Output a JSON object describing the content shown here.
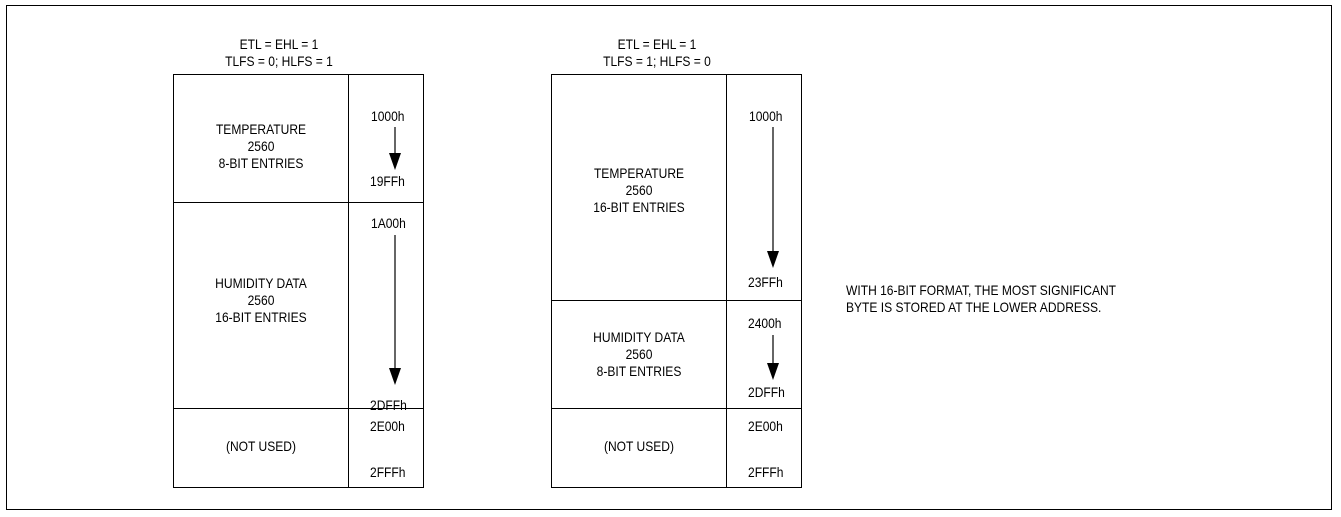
{
  "layouts": [
    {
      "header": {
        "line1": "ETL = EHL = 1",
        "line2": "TLFS = 0; HLFS = 1"
      },
      "regions": [
        {
          "label": [
            "TEMPERATURE",
            "2560",
            "8-BIT ENTRIES"
          ],
          "start": "1000h",
          "end": "19FFh"
        },
        {
          "label": [
            "HUMIDITY DATA",
            "2560",
            "16-BIT ENTRIES"
          ],
          "start": "1A00h",
          "end": "2DFFh"
        },
        {
          "label": [
            "(NOT USED)"
          ],
          "start": "2E00h",
          "end": "2FFFh"
        }
      ]
    },
    {
      "header": {
        "line1": "ETL = EHL = 1",
        "line2": "TLFS = 1; HLFS = 0"
      },
      "regions": [
        {
          "label": [
            "TEMPERATURE",
            "2560",
            "16-BIT ENTRIES"
          ],
          "start": "1000h",
          "end": "23FFh"
        },
        {
          "label": [
            "HUMIDITY DATA",
            "2560",
            "8-BIT ENTRIES"
          ],
          "start": "2400h",
          "end": "2DFFh"
        },
        {
          "label": [
            "(NOT USED)"
          ],
          "start": "2E00h",
          "end": "2FFFh"
        }
      ]
    }
  ],
  "note": {
    "line1": "WITH 16-BIT FORMAT, THE MOST SIGNIFICANT",
    "line2": "BYTE IS STORED AT THE LOWER ADDRESS."
  }
}
